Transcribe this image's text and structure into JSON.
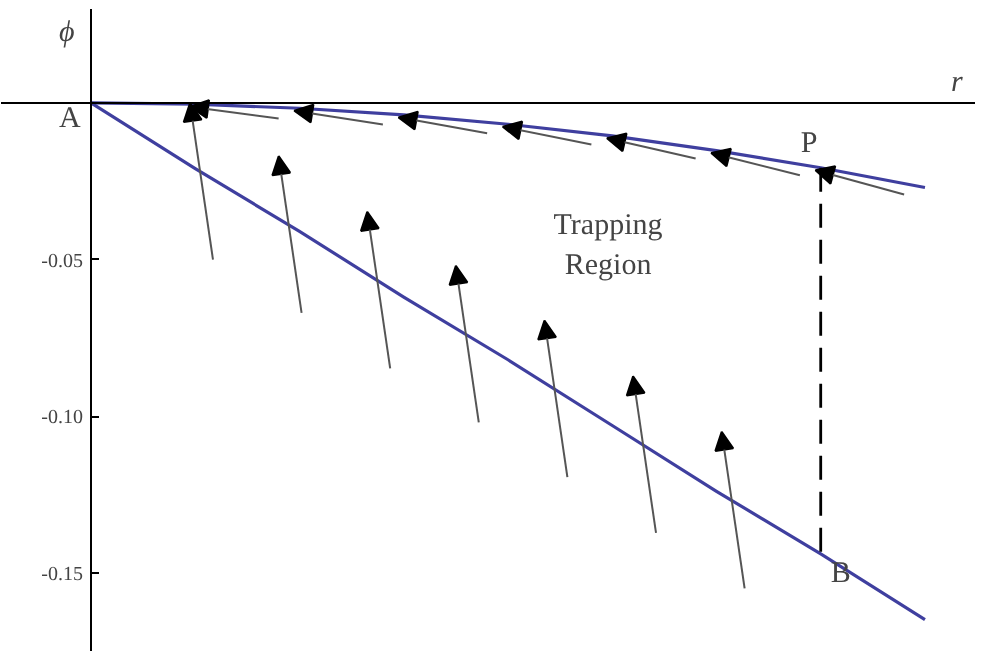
{
  "chart_data": {
    "type": "line",
    "xlabel": "r",
    "ylabel": "ϕ",
    "categories": [
      null,
      null,
      null,
      null,
      null,
      null,
      null,
      null,
      null
    ],
    "series": [
      {
        "color": "#3f3f9f",
        "values": [
          0,
          -0.0004,
          -0.0017,
          -0.0038,
          -0.0068,
          -0.0105,
          -0.0152,
          -0.0207,
          -0.027
        ]
      },
      {
        "color": "#3f3f9f",
        "values": [
          0,
          -0.021,
          -0.041,
          -0.062,
          -0.082,
          -0.103,
          -0.124,
          -0.144,
          -0.165
        ]
      }
    ],
    "ylim": [
      -0.175,
      0.03
    ],
    "yticks": [
      {
        "value": -0.15,
        "label": "-0.15"
      },
      {
        "value": -0.1,
        "label": "-0.10"
      },
      {
        "value": -0.05,
        "label": "-0.05"
      }
    ],
    "tick_labels": "y",
    "grid": false,
    "annotations": [
      "A",
      "P",
      "B",
      "Trapping\nRegion"
    ]
  }
}
